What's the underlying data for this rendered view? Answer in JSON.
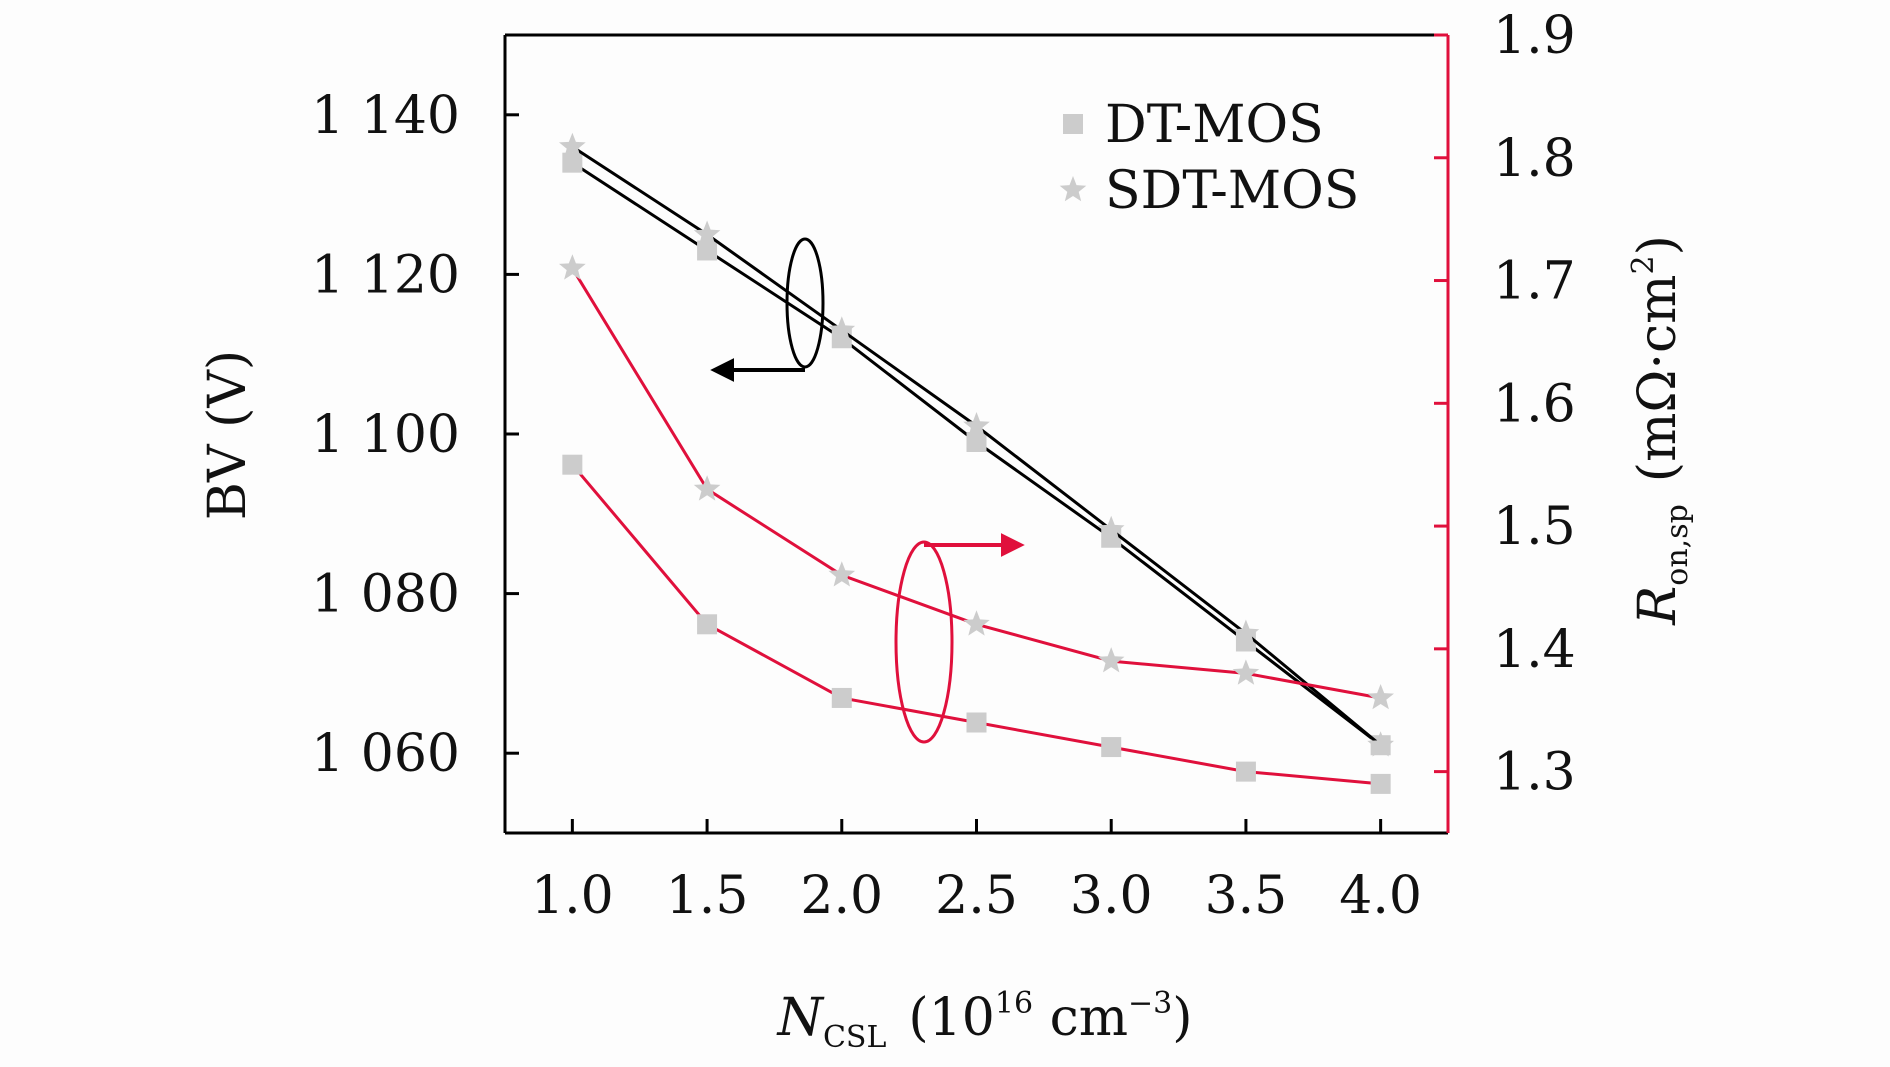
{
  "chart_data": {
    "type": "line",
    "x": [
      1.0,
      1.5,
      2.0,
      2.5,
      3.0,
      3.5,
      4.0
    ],
    "x_tick_labels": [
      "1.0",
      "1.5",
      "2.0",
      "2.5",
      "3.0",
      "3.5",
      "4.0"
    ],
    "xlim": [
      0.75,
      4.25
    ],
    "xlabel": {
      "main": "N",
      "sub": "CSL",
      "unit_open": "(10",
      "unit_sup": "16",
      "unit_mid": " cm",
      "unit_sup2": "−3",
      "unit_close": ")"
    },
    "y_left": {
      "label": "BV (V)",
      "ylim": [
        1050,
        1150
      ],
      "ticks": [
        1060,
        1080,
        1100,
        1120,
        1140
      ],
      "tick_labels": [
        "1 060",
        "1 080",
        "1 100",
        "1 120",
        "1 140"
      ]
    },
    "y_right": {
      "label": {
        "main": "R",
        "sub": "on,sp",
        "unit_open": "(mΩ·cm",
        "unit_sup": "2",
        "unit_close": ")"
      },
      "ylim": [
        1.25,
        1.9
      ],
      "ticks": [
        1.3,
        1.4,
        1.5,
        1.6,
        1.7,
        1.8,
        1.9
      ],
      "tick_labels": [
        "1.3",
        "1.4",
        "1.5",
        "1.6",
        "1.7",
        "1.8",
        "1.9"
      ]
    },
    "series": [
      {
        "name": "DT-MOS",
        "axis": "left",
        "marker": "square",
        "line_color": "#000000",
        "values": [
          1134,
          1123,
          1112,
          1099,
          1087,
          1074,
          1061
        ]
      },
      {
        "name": "SDT-MOS",
        "axis": "left",
        "marker": "star",
        "line_color": "#000000",
        "values": [
          1136,
          1125,
          1113,
          1101,
          1088,
          1075,
          1061
        ]
      },
      {
        "name": "DT-MOS",
        "axis": "right",
        "marker": "square",
        "line_color": "#e0103c",
        "values": [
          1.55,
          1.42,
          1.36,
          1.34,
          1.32,
          1.3,
          1.29
        ]
      },
      {
        "name": "SDT-MOS",
        "axis": "right",
        "marker": "star",
        "line_color": "#e0103c",
        "values": [
          1.71,
          1.53,
          1.46,
          1.42,
          1.39,
          1.38,
          1.36
        ]
      }
    ],
    "legend": {
      "placement": "top-right",
      "entries": [
        {
          "label": "DT-MOS",
          "marker": "square"
        },
        {
          "label": "SDT-MOS",
          "marker": "star"
        }
      ]
    },
    "grid": false,
    "colors": {
      "left_axis": "#000000",
      "right_axis": "#e0103c",
      "marker": "#cccccc"
    }
  }
}
